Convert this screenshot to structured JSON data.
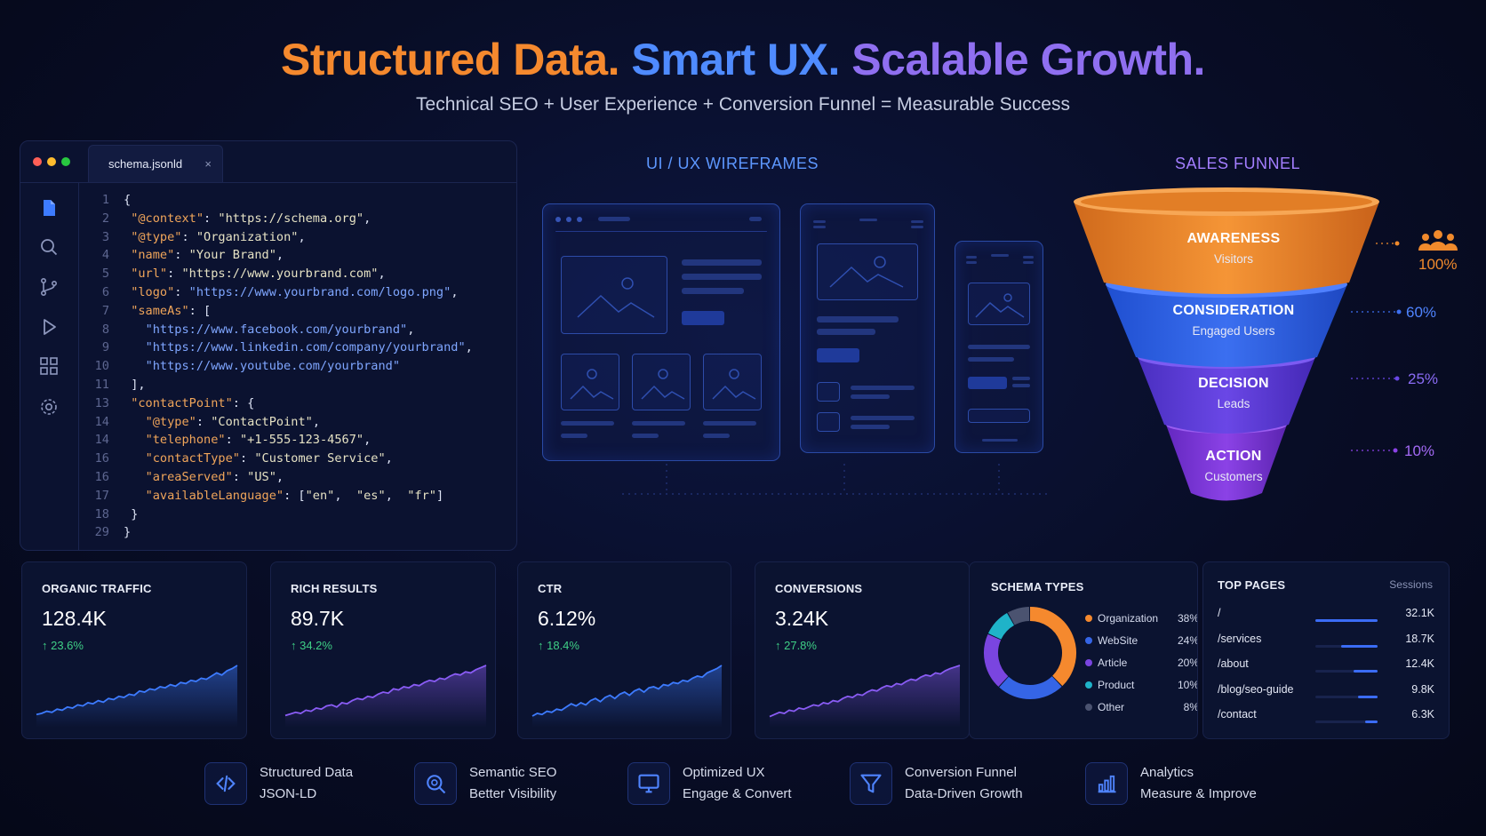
{
  "header": {
    "title_part1": "Structured Data.",
    "title_part2": "Smart UX.",
    "title_part3": "Scalable Growth.",
    "subtitle": "Technical SEO + User Experience + Conversion Funnel = Measurable Success"
  },
  "editor": {
    "tab_label": "schema.jsonld",
    "tab_close": "×",
    "lines": [
      {
        "n": "1",
        "html": "<span class=\"p\">{</span>"
      },
      {
        "n": "2",
        "html": " <span class=\"k\">\"@context\"</span><span class=\"p\">: </span><span class=\"s\">\"https://schema.org\"</span><span class=\"p\">,</span>"
      },
      {
        "n": "3",
        "html": " <span class=\"k\">\"@type\"</span><span class=\"p\">: </span><span class=\"s\">\"Organization\"</span><span class=\"p\">,</span>"
      },
      {
        "n": "4",
        "html": " <span class=\"k\">\"name\"</span><span class=\"p\">: </span><span class=\"s\">\"Your Brand\"</span><span class=\"p\">,</span>"
      },
      {
        "n": "5",
        "html": " <span class=\"k\">\"url\"</span><span class=\"p\">: </span><span class=\"s\">\"https://www.yourbrand.com\"</span><span class=\"p\">,</span>"
      },
      {
        "n": "6",
        "html": " <span class=\"k\">\"logo\"</span><span class=\"p\">: </span><span class=\"u\">\"https://www.yourbrand.com/logo.png\"</span><span class=\"p\">,</span>"
      },
      {
        "n": "7",
        "html": " <span class=\"k\">\"sameAs\"</span><span class=\"p\">: [</span>"
      },
      {
        "n": "8",
        "html": "   <span class=\"u\">\"https://www.facebook.com/yourbrand\"</span><span class=\"p\">,</span>"
      },
      {
        "n": "9",
        "html": "   <span class=\"u\">\"https://www.linkedin.com/company/yourbrand\"</span><span class=\"p\">,</span>"
      },
      {
        "n": "10",
        "html": "   <span class=\"u\">\"https://www.youtube.com/yourbrand\"</span>"
      },
      {
        "n": "11",
        "html": " <span class=\"p\">],</span>"
      },
      {
        "n": "13",
        "html": " <span class=\"k\">\"contactPoint\"</span><span class=\"p\">: {</span>"
      },
      {
        "n": "14",
        "html": "   <span class=\"k\">\"@type\"</span><span class=\"p\">: </span><span class=\"s\">\"ContactPoint\"</span><span class=\"p\">,</span>"
      },
      {
        "n": "14",
        "html": "   <span class=\"k\">\"telephone\"</span><span class=\"p\">: </span><span class=\"s\">\"+1-555-123-4567\"</span><span class=\"p\">,</span>"
      },
      {
        "n": "16",
        "html": "   <span class=\"k\">\"contactType\"</span><span class=\"p\">: </span><span class=\"s\">\"Customer Service\"</span><span class=\"p\">,</span>"
      },
      {
        "n": "16",
        "html": "   <span class=\"k\">\"areaServed\"</span><span class=\"p\">: </span><span class=\"s\">\"US\"</span><span class=\"p\">,</span>"
      },
      {
        "n": "17",
        "html": "   <span class=\"k\">\"availableLanguage\"</span><span class=\"p\">: [</span><span class=\"s\">\"en\"</span><span class=\"p\">,  </span><span class=\"s\">\"es\"</span><span class=\"p\">,  </span><span class=\"s\">\"fr\"</span><span class=\"p\">]</span>"
      },
      {
        "n": "18",
        "html": " <span class=\"p\">}</span>"
      },
      {
        "n": "29",
        "html": "<span class=\"p\">}</span>"
      }
    ],
    "rail_icons": [
      "file-icon",
      "search-icon",
      "source-control-icon",
      "run-icon",
      "extensions-icon",
      "settings-icon"
    ]
  },
  "wireframes": {
    "label": "UI / UX WIREFRAMES"
  },
  "funnel": {
    "label": "SALES FUNNEL",
    "stages": [
      {
        "name": "AWARENESS",
        "sub": "Visitors",
        "pct": "100%",
        "color": "#f08a2c"
      },
      {
        "name": "CONSIDERATION",
        "sub": "Engaged Users",
        "pct": "60%",
        "color": "#2f63e8"
      },
      {
        "name": "DECISION",
        "sub": "Leads",
        "pct": "25%",
        "color": "#5a3bd8"
      },
      {
        "name": "ACTION",
        "sub": "Customers",
        "pct": "10%",
        "color": "#7b35d6"
      }
    ]
  },
  "metrics": [
    {
      "title": "ORGANIC TRAFFIC",
      "value": "128.4K",
      "delta": "↑ 23.6%",
      "color": "#3d7bff"
    },
    {
      "title": "RICH RESULTS",
      "value": "89.7K",
      "delta": "↑ 34.2%",
      "color": "#8a5cf5"
    },
    {
      "title": "CTR",
      "value": "6.12%",
      "delta": "↑ 18.4%",
      "color": "#3d7bff"
    },
    {
      "title": "CONVERSIONS",
      "value": "3.24K",
      "delta": "↑ 27.8%",
      "color": "#8a5cf5"
    }
  ],
  "schema_types": {
    "title": "SCHEMA TYPES",
    "items": [
      {
        "name": "Organization",
        "value": "38%",
        "pct": 38,
        "color": "#f5892e"
      },
      {
        "name": "WebSite",
        "value": "24%",
        "pct": 24,
        "color": "#3565e6"
      },
      {
        "name": "Article",
        "value": "20%",
        "pct": 20,
        "color": "#7a45e0"
      },
      {
        "name": "Product",
        "value": "10%",
        "pct": 10,
        "color": "#1fb3c9"
      },
      {
        "name": "Other",
        "value": "8%",
        "pct": 8,
        "color": "#4b5370"
      }
    ]
  },
  "top_pages": {
    "title": "TOP PAGES",
    "col_label": "Sessions",
    "rows": [
      {
        "page": "/",
        "value": "32.1K",
        "fraction": 1.0
      },
      {
        "page": "/services",
        "value": "18.7K",
        "fraction": 0.58
      },
      {
        "page": "/about",
        "value": "12.4K",
        "fraction": 0.39
      },
      {
        "page": "/blog/seo-guide",
        "value": "9.8K",
        "fraction": 0.31
      },
      {
        "page": "/contact",
        "value": "6.3K",
        "fraction": 0.2
      }
    ]
  },
  "features": [
    {
      "icon": "code-icon",
      "line1": "Structured Data",
      "line2": "JSON-LD"
    },
    {
      "icon": "magnifier-icon",
      "line1": "Semantic SEO",
      "line2": "Better Visibility"
    },
    {
      "icon": "monitor-icon",
      "line1": "Optimized UX",
      "line2": "Engage & Convert"
    },
    {
      "icon": "funnel-icon",
      "line1": "Conversion Funnel",
      "line2": "Data-Driven Growth"
    },
    {
      "icon": "bar-chart-icon",
      "line1": "Analytics",
      "line2": "Measure & Improve"
    }
  ]
}
